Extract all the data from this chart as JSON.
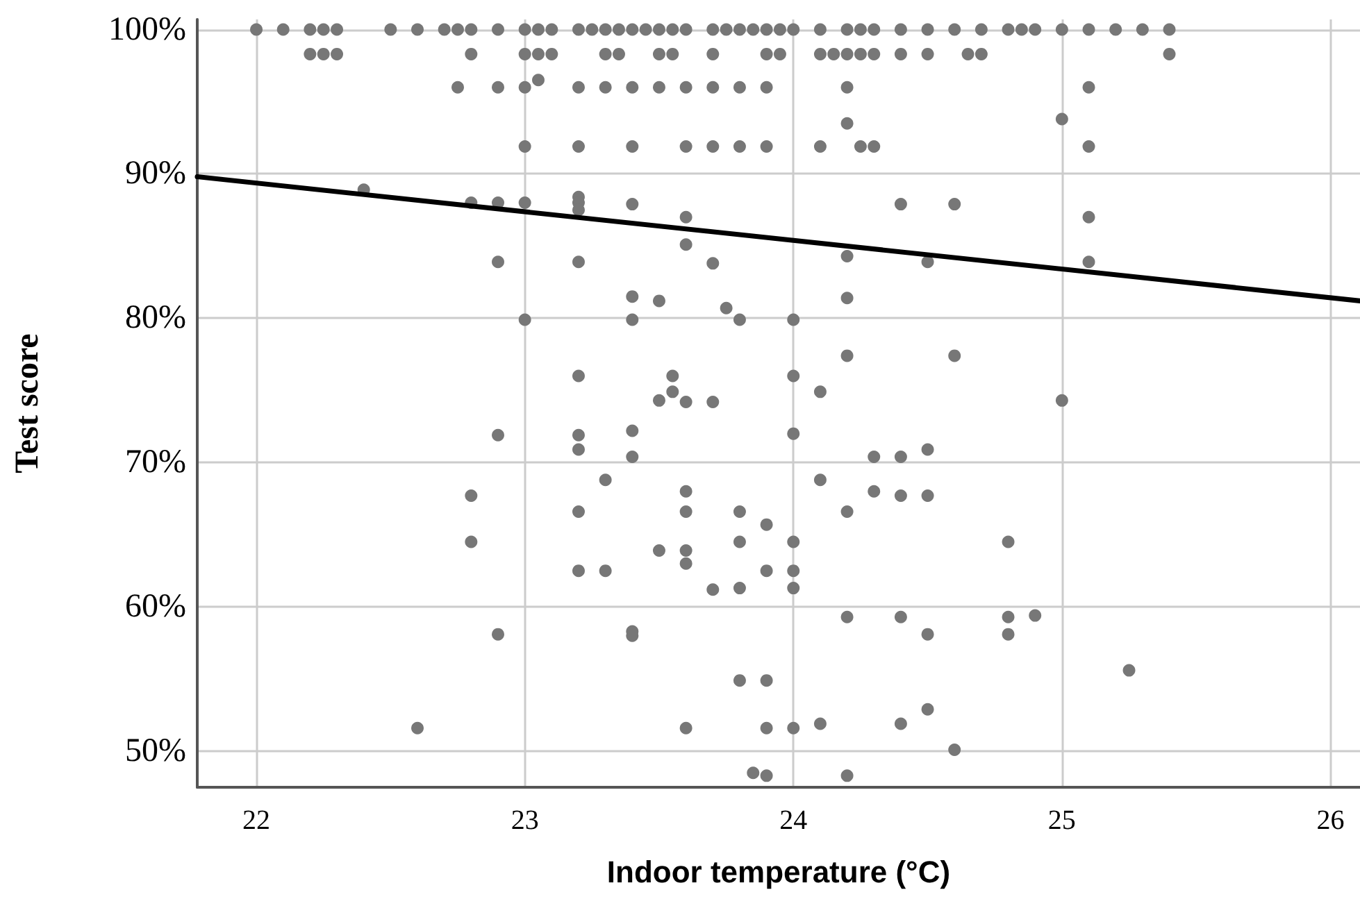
{
  "chart_data": {
    "type": "scatter",
    "xlabel": "Indoor temperature (°C)",
    "ylabel": "Test score",
    "xlim": [
      21.78,
      26.11
    ],
    "ylim": [
      47.5,
      100.7
    ],
    "xticks": [
      22,
      23,
      24,
      25,
      26
    ],
    "yticks": [
      {
        "value": 50,
        "label": "50%"
      },
      {
        "value": 60,
        "label": "60%"
      },
      {
        "value": 70,
        "label": "70%"
      },
      {
        "value": 80,
        "label": "80%"
      },
      {
        "value": 90,
        "label": "90%"
      },
      {
        "value": 100,
        "label": "100%"
      }
    ],
    "grid": true,
    "marker": "circle",
    "series": [
      {
        "color": "#777777",
        "x": [
          22.0,
          22.1,
          22.2,
          22.25,
          22.3,
          22.5,
          22.6,
          22.7,
          22.75,
          22.8,
          22.9,
          23.0,
          23.05,
          23.1,
          23.2,
          23.25,
          23.3,
          23.35,
          23.4,
          23.45,
          23.5,
          23.55,
          23.6,
          23.7,
          23.75,
          23.8,
          23.85,
          23.9,
          23.95,
          24.0,
          24.1,
          24.2,
          24.25,
          24.3,
          24.4,
          24.5,
          24.6,
          24.7,
          24.8,
          24.85,
          24.9,
          25.0,
          25.1,
          25.2,
          25.3,
          25.4,
          22.2,
          22.25,
          22.3,
          22.8,
          23.0,
          23.05,
          23.1,
          23.3,
          23.35,
          23.5,
          23.55,
          23.7,
          23.9,
          23.95,
          24.1,
          24.15,
          24.2,
          24.25,
          24.3,
          24.4,
          24.5,
          24.65,
          24.7,
          25.4,
          23.05,
          22.75,
          22.9,
          23.0,
          23.2,
          23.3,
          23.4,
          23.5,
          23.6,
          23.7,
          23.8,
          23.9,
          24.2,
          25.1,
          25.0,
          24.2,
          23.0,
          23.2,
          23.4,
          23.6,
          23.7,
          23.8,
          23.9,
          24.1,
          24.25,
          24.3,
          25.1,
          22.4,
          22.8,
          22.9,
          23.0,
          23.2,
          23.2,
          23.2,
          23.4,
          23.6,
          23.6,
          23.7,
          22.9,
          23.2,
          24.4,
          24.6,
          25.1,
          24.2,
          24.5,
          25.1,
          24.2,
          23.4,
          23.5,
          23.75,
          23.8,
          23.0,
          23.4,
          24.0,
          23.2,
          23.55,
          23.55,
          23.5,
          23.6,
          23.7,
          24.2,
          24.6,
          24.0,
          24.1,
          25.0,
          22.9,
          23.2,
          23.2,
          23.4,
          23.4,
          24.0,
          24.3,
          24.4,
          24.5,
          23.3,
          22.8,
          23.2,
          23.6,
          23.6,
          23.8,
          23.9,
          22.8,
          23.5,
          23.6,
          23.6,
          23.8,
          23.2,
          23.3,
          23.9,
          23.7,
          23.8,
          24.1,
          24.3,
          24.4,
          24.5,
          24.2,
          24.0,
          24.8,
          24.0,
          24.0,
          24.2,
          24.4,
          24.5,
          24.8,
          24.9,
          24.8,
          22.9,
          23.4,
          23.4,
          23.8,
          23.9,
          25.25,
          22.6,
          23.6,
          23.9,
          24.0,
          24.1,
          24.4,
          24.5,
          24.6,
          23.85,
          23.9,
          24.2
        ],
        "values": [
          100,
          100,
          100,
          100,
          100,
          100,
          100,
          100,
          100,
          100,
          100,
          100,
          100,
          100,
          100,
          100,
          100,
          100,
          100,
          100,
          100,
          100,
          100,
          100,
          100,
          100,
          100,
          100,
          100,
          100,
          100,
          100,
          100,
          100,
          100,
          100,
          100,
          100,
          100,
          100,
          100,
          100,
          100,
          100,
          100,
          100,
          98.3,
          98.3,
          98.3,
          98.3,
          98.3,
          98.3,
          98.3,
          98.3,
          98.3,
          98.3,
          98.3,
          98.3,
          98.3,
          98.3,
          98.3,
          98.3,
          98.3,
          98.3,
          98.3,
          98.3,
          98.3,
          98.3,
          98.3,
          98.3,
          96.5,
          96.0,
          96.0,
          96.0,
          96.0,
          96.0,
          96.0,
          96.0,
          96.0,
          96.0,
          96.0,
          96.0,
          96.0,
          96.0,
          93.8,
          93.5,
          91.9,
          91.9,
          91.9,
          91.9,
          91.9,
          91.9,
          91.9,
          91.9,
          91.9,
          91.9,
          91.9,
          88.9,
          88.0,
          88.0,
          88.0,
          88.4,
          88.0,
          87.5,
          87.9,
          87.0,
          85.1,
          83.8,
          83.9,
          83.9,
          87.9,
          87.9,
          87.0,
          84.3,
          83.9,
          83.9,
          81.4,
          81.5,
          81.2,
          80.7,
          79.9,
          79.9,
          79.9,
          79.9,
          76.0,
          76.0,
          74.9,
          74.3,
          74.2,
          74.2,
          77.4,
          77.4,
          76.0,
          74.9,
          74.3,
          71.9,
          71.9,
          70.9,
          72.2,
          70.4,
          72.0,
          70.4,
          70.4,
          70.9,
          68.8,
          67.7,
          66.6,
          68.0,
          66.6,
          66.6,
          65.7,
          64.5,
          63.9,
          63.9,
          63.0,
          64.5,
          62.5,
          62.5,
          62.5,
          61.2,
          61.3,
          68.8,
          68.0,
          67.7,
          67.7,
          66.6,
          64.5,
          64.5,
          62.5,
          61.3,
          59.3,
          59.3,
          58.1,
          59.3,
          59.4,
          58.1,
          58.1,
          58.3,
          58.0,
          54.9,
          54.9,
          55.6,
          51.6,
          51.6,
          51.6,
          51.6,
          51.9,
          51.9,
          52.9,
          50.1,
          48.5,
          48.3,
          48.3
        ]
      },
      {
        "type": "line",
        "color": "#000000",
        "marker": "none",
        "line_style": "solid",
        "x": [
          21.78,
          26.11
        ],
        "values": [
          89.8,
          81.2
        ]
      }
    ]
  }
}
